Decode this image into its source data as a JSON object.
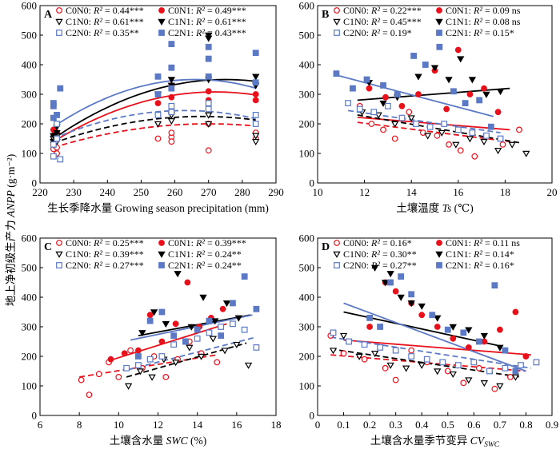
{
  "figure": {
    "ylabel": "地上净初级生产力 ANPP (g·m⁻²)"
  },
  "series_styles": [
    {
      "name": "C0N0",
      "color": "#e8111b",
      "marker": "circle",
      "filled": false,
      "dash": true
    },
    {
      "name": "C0N1",
      "color": "#e8111b",
      "marker": "circle",
      "filled": true,
      "dash": false
    },
    {
      "name": "C1N0",
      "color": "#000000",
      "marker": "triangle-down",
      "filled": false,
      "dash": true
    },
    {
      "name": "C1N1",
      "color": "#000000",
      "marker": "triangle-down",
      "filled": true,
      "dash": false
    },
    {
      "name": "C2N0",
      "color": "#5b79c4",
      "marker": "square",
      "filled": false,
      "dash": true
    },
    {
      "name": "C2N1",
      "color": "#5b79c4",
      "marker": "square",
      "filled": true,
      "dash": false
    }
  ],
  "chart_data": [
    {
      "type": "scatter",
      "panel_label": "A",
      "xlabel": "生长季降水量 Growing season precipitation (mm)",
      "xlim": [
        220,
        290
      ],
      "ylim": [
        0,
        600
      ],
      "xticks": [
        220,
        230,
        240,
        250,
        260,
        270,
        280,
        290
      ],
      "yticks": [
        0,
        100,
        200,
        300,
        400,
        500,
        600
      ],
      "fit": "quadratic",
      "legend": [
        "C0N0: R² = 0.44***",
        "C0N1: R² = 0.49***",
        "C1N0: R² = 0.61***",
        "C1N1: R² = 0.61***",
        "C2N0: R² = 0.35**",
        "C2N1: R² = 0.43***"
      ],
      "series": [
        {
          "name": "C0N0",
          "x": [
            224,
            224,
            224,
            225,
            225,
            255,
            259,
            259,
            259,
            270,
            270,
            284,
            284
          ],
          "y": [
            115,
            130,
            145,
            100,
            120,
            150,
            155,
            170,
            140,
            110,
            200,
            150,
            170
          ],
          "fit_x": [
            224,
            284
          ],
          "fit_y": [
            120,
            180
          ],
          "fit_peak": [
            270,
            200
          ]
        },
        {
          "name": "C0N1",
          "x": [
            224,
            224,
            225,
            225,
            255,
            259,
            259,
            270,
            270,
            284,
            284
          ],
          "y": [
            160,
            180,
            150,
            170,
            270,
            290,
            330,
            280,
            310,
            280,
            300
          ],
          "fit_x": [
            224,
            284
          ],
          "fit_y": [
            140,
            290
          ],
          "fit_peak": [
            272,
            308
          ]
        },
        {
          "name": "C1N0",
          "x": [
            224,
            224,
            225,
            225,
            255,
            259,
            259,
            270,
            270,
            284,
            284
          ],
          "y": [
            130,
            150,
            140,
            160,
            200,
            230,
            210,
            200,
            230,
            140,
            160
          ],
          "fit_x": [
            224,
            284
          ],
          "fit_y": [
            135,
            205
          ],
          "fit_peak": [
            268,
            225
          ]
        },
        {
          "name": "C1N1",
          "x": [
            224,
            224,
            225,
            225,
            255,
            259,
            259,
            270,
            270,
            270,
            284,
            284
          ],
          "y": [
            140,
            160,
            170,
            190,
            300,
            330,
            350,
            350,
            490,
            500,
            330,
            360
          ],
          "fit_x": [
            224,
            284
          ],
          "fit_y": [
            150,
            345
          ],
          "fit_peak": [
            275,
            350
          ]
        },
        {
          "name": "C2N0",
          "x": [
            224,
            224,
            225,
            225,
            226,
            255,
            259,
            259,
            270,
            270,
            284,
            284
          ],
          "y": [
            90,
            130,
            150,
            200,
            80,
            230,
            240,
            260,
            250,
            270,
            200,
            230
          ],
          "fit_x": [
            224,
            284
          ],
          "fit_y": [
            150,
            210
          ],
          "fit_peak": [
            263,
            245
          ]
        },
        {
          "name": "C2N1",
          "x": [
            224,
            224,
            224,
            225,
            226,
            255,
            255,
            259,
            259,
            259,
            270,
            270,
            270,
            284,
            284
          ],
          "y": [
            220,
            260,
            270,
            230,
            320,
            300,
            360,
            320,
            390,
            470,
            360,
            420,
            460,
            340,
            440
          ],
          "fit_x": [
            224,
            284
          ],
          "fit_y": [
            190,
            320
          ],
          "fit_peak": [
            266,
            350
          ]
        }
      ]
    },
    {
      "type": "scatter",
      "panel_label": "B",
      "xlabel": "土壤温度 Ts (℃)",
      "xlim": [
        10,
        20
      ],
      "ylim": [
        0,
        600
      ],
      "xticks": [
        10,
        12,
        14,
        16,
        18,
        20
      ],
      "yticks": [
        0,
        100,
        200,
        300,
        400,
        500,
        600
      ],
      "fit": "linear",
      "legend": [
        "C0N0: R² = 0.22***",
        "C0N1: R² = 0.09 ns",
        "C1N0: R² = 0.45***",
        "C1N1: R² = 0.08 ns",
        "C2N0: R² = 0.19*",
        "C2N1: R² = 0.15*"
      ],
      "series": [
        {
          "name": "C0N0",
          "x": [
            11.8,
            12.3,
            12.8,
            13.3,
            13.9,
            14.5,
            15.1,
            15.6,
            16.1,
            16.7,
            17.2,
            17.9,
            18.6
          ],
          "y": [
            260,
            200,
            180,
            150,
            240,
            170,
            160,
            130,
            110,
            90,
            160,
            130,
            180
          ],
          "fit_x": [
            11.7,
            18.2
          ],
          "fit_y": [
            205,
            140
          ]
        },
        {
          "name": "C0N1",
          "x": [
            12.2,
            12.9,
            13.6,
            14.3,
            15.0,
            15.5,
            16.0,
            16.5,
            17.1,
            17.7
          ],
          "y": [
            320,
            290,
            260,
            300,
            380,
            250,
            450,
            300,
            320,
            240
          ],
          "fit_x": [
            11.7,
            18.2
          ],
          "fit_y": [
            222,
            180
          ]
        },
        {
          "name": "C1N0",
          "x": [
            11.9,
            12.6,
            13.3,
            14.0,
            14.7,
            15.3,
            15.9,
            16.5,
            17.1,
            17.7,
            18.3,
            18.9
          ],
          "y": [
            240,
            230,
            200,
            220,
            160,
            170,
            130,
            150,
            140,
            110,
            130,
            100
          ],
          "fit_x": [
            11.7,
            18.7
          ],
          "fit_y": [
            230,
            135
          ]
        },
        {
          "name": "C1N1",
          "x": [
            12.2,
            12.8,
            13.4,
            14.3,
            15.0,
            15.6,
            16.1,
            16.6,
            17.2,
            17.8
          ],
          "y": [
            340,
            270,
            290,
            360,
            390,
            350,
            420,
            350,
            300,
            310
          ],
          "fit_x": [
            11.7,
            18.2
          ],
          "fit_y": [
            280,
            320
          ]
        },
        {
          "name": "C2N0",
          "x": [
            11.3,
            11.8,
            12.4,
            13.0,
            13.6,
            14.2,
            14.8,
            15.4,
            16.0,
            16.6,
            17.2,
            17.8
          ],
          "y": [
            270,
            250,
            240,
            260,
            220,
            200,
            190,
            200,
            180,
            170,
            160,
            150
          ],
          "fit_x": [
            11.3,
            17.8
          ],
          "fit_y": [
            245,
            170
          ]
        },
        {
          "name": "C2N1",
          "x": [
            10.8,
            11.5,
            12.1,
            12.8,
            13.4,
            14.1,
            14.6,
            15.2,
            15.8,
            16.3,
            16.9,
            17.4
          ],
          "y": [
            370,
            320,
            350,
            330,
            300,
            430,
            400,
            460,
            310,
            270,
            280,
            190
          ],
          "fit_x": [
            10.8,
            17.5
          ],
          "fit_y": [
            365,
            225
          ]
        }
      ]
    },
    {
      "type": "scatter",
      "panel_label": "C",
      "xlabel": "土壤含水量 SWC (%)",
      "xlim": [
        6,
        18
      ],
      "ylim": [
        0,
        600
      ],
      "xticks": [
        6,
        8,
        10,
        12,
        14,
        16,
        18
      ],
      "yticks": [
        0,
        100,
        200,
        300,
        400,
        500,
        600
      ],
      "fit": "linear",
      "legend": [
        "C0N0: R² = 0.25***",
        "C0N1: R² = 0.39***",
        "C1N0: R² = 0.39***",
        "C1N1: R² = 0.24**",
        "C2N0: R² = 0.27***",
        "C2N1: R² = 0.24**"
      ],
      "series": [
        {
          "name": "C0N0",
          "x": [
            8.1,
            8.5,
            9.0,
            9.5,
            10.0,
            10.6,
            11.2,
            11.8,
            12.4,
            13.0,
            13.6,
            14.2,
            15.0
          ],
          "y": [
            120,
            70,
            140,
            180,
            130,
            220,
            160,
            200,
            130,
            190,
            250,
            210,
            180
          ],
          "fit_x": [
            8.0,
            15.0
          ],
          "fit_y": [
            130,
            205
          ]
        },
        {
          "name": "C0N1",
          "x": [
            9.6,
            10.3,
            11.0,
            11.6,
            12.2,
            12.9,
            13.5,
            14.1,
            14.7,
            15.3
          ],
          "y": [
            190,
            210,
            220,
            340,
            250,
            310,
            450,
            300,
            330,
            360
          ],
          "fit_x": [
            9.5,
            15.5
          ],
          "fit_y": [
            185,
            310
          ]
        },
        {
          "name": "C1N0",
          "x": [
            10.5,
            11.1,
            11.7,
            12.3,
            12.9,
            13.6,
            14.2,
            14.8,
            15.4,
            16.0,
            16.6
          ],
          "y": [
            100,
            150,
            130,
            190,
            180,
            230,
            200,
            260,
            220,
            240,
            170
          ],
          "fit_x": [
            10.4,
            16.5
          ],
          "fit_y": [
            130,
            245
          ]
        },
        {
          "name": "C1N1",
          "x": [
            11.2,
            11.8,
            12.4,
            13.0,
            13.7,
            14.3,
            14.9,
            15.5,
            16.1
          ],
          "y": [
            280,
            350,
            310,
            480,
            300,
            400,
            320,
            380,
            330
          ],
          "fit_x": [
            11.0,
            16.7
          ],
          "fit_y": [
            270,
            340
          ]
        },
        {
          "name": "C2N0",
          "x": [
            10.4,
            11.0,
            11.6,
            12.2,
            12.8,
            13.4,
            14.0,
            14.6,
            15.2,
            15.8,
            16.4,
            17.0
          ],
          "y": [
            160,
            170,
            190,
            200,
            240,
            250,
            260,
            280,
            300,
            310,
            290,
            230
          ],
          "fit_x": [
            10.5,
            17.0
          ],
          "fit_y": [
            155,
            265
          ]
        },
        {
          "name": "C2N1",
          "x": [
            11.0,
            11.6,
            12.2,
            12.8,
            13.4,
            14.0,
            14.6,
            15.2,
            15.8,
            16.4,
            17.0
          ],
          "y": [
            200,
            320,
            350,
            270,
            250,
            290,
            320,
            270,
            380,
            470,
            360
          ],
          "fit_x": [
            10.6,
            16.8
          ],
          "fit_y": [
            255,
            340
          ]
        }
      ]
    },
    {
      "type": "scatter",
      "panel_label": "D",
      "xlabel": "土壤含水量季节变异 CVSWC",
      "xlim": [
        0,
        0.9
      ],
      "ylim": [
        0,
        600
      ],
      "xticks": [
        0,
        0.1,
        0.2,
        0.3,
        0.4,
        0.5,
        0.6,
        0.7,
        0.8,
        0.9
      ],
      "yticks": [
        0,
        100,
        200,
        300,
        400,
        500,
        600
      ],
      "fit": "linear",
      "legend": [
        "C0N0: R² = 0.16*",
        "C0N1: R² = 0.11 ns",
        "C1N0: R² = 0.30**",
        "C1N1: R² = 0.14*",
        "C2N0: R² = 0.27**",
        "C2N1: R² = 0.16*"
      ],
      "series": [
        {
          "name": "C0N0",
          "x": [
            0.05,
            0.1,
            0.18,
            0.26,
            0.3,
            0.36,
            0.42,
            0.5,
            0.56,
            0.62,
            0.68,
            0.74,
            0.8
          ],
          "y": [
            270,
            210,
            190,
            160,
            120,
            220,
            180,
            150,
            110,
            160,
            90,
            130,
            200
          ],
          "fit_x": [
            0.05,
            0.8
          ],
          "fit_y": [
            205,
            150
          ]
        },
        {
          "name": "C0N1",
          "x": [
            0.2,
            0.26,
            0.3,
            0.36,
            0.4,
            0.46,
            0.52,
            0.58,
            0.64,
            0.7,
            0.76,
            0.8
          ],
          "y": [
            300,
            450,
            420,
            380,
            340,
            300,
            260,
            230,
            250,
            290,
            350,
            200
          ],
          "fit_x": [
            0.1,
            0.82
          ],
          "fit_y": [
            255,
            205
          ]
        },
        {
          "name": "C1N0",
          "x": [
            0.06,
            0.1,
            0.16,
            0.22,
            0.28,
            0.34,
            0.4,
            0.46,
            0.52,
            0.58,
            0.64,
            0.7,
            0.76
          ],
          "y": [
            220,
            270,
            200,
            210,
            170,
            160,
            170,
            150,
            140,
            120,
            110,
            100,
            130
          ],
          "fit_x": [
            0.05,
            0.78
          ],
          "fit_y": [
            225,
            130
          ]
        },
        {
          "name": "C1N1",
          "x": [
            0.22,
            0.26,
            0.28,
            0.32,
            0.36,
            0.4,
            0.46,
            0.52,
            0.58,
            0.64,
            0.7
          ],
          "y": [
            500,
            450,
            480,
            400,
            380,
            370,
            330,
            300,
            290,
            270,
            230
          ],
          "fit_x": [
            0.1,
            0.7
          ],
          "fit_y": [
            350,
            235
          ]
        },
        {
          "name": "C2N0",
          "x": [
            0.06,
            0.12,
            0.18,
            0.24,
            0.3,
            0.36,
            0.42,
            0.48,
            0.54,
            0.6,
            0.66,
            0.72,
            0.78,
            0.84
          ],
          "y": [
            280,
            250,
            240,
            230,
            220,
            200,
            190,
            180,
            170,
            180,
            150,
            160,
            170,
            180
          ],
          "fit_x": [
            0.05,
            0.82
          ],
          "fit_y": [
            265,
            160
          ]
        },
        {
          "name": "C2N1",
          "x": [
            0.2,
            0.24,
            0.28,
            0.32,
            0.36,
            0.44,
            0.5,
            0.56,
            0.62,
            0.68,
            0.72,
            0.76
          ],
          "y": [
            330,
            300,
            450,
            470,
            410,
            340,
            290,
            280,
            250,
            440,
            220,
            150
          ],
          "fit_x": [
            0.1,
            0.8
          ],
          "fit_y": [
            380,
            150
          ]
        }
      ]
    }
  ]
}
